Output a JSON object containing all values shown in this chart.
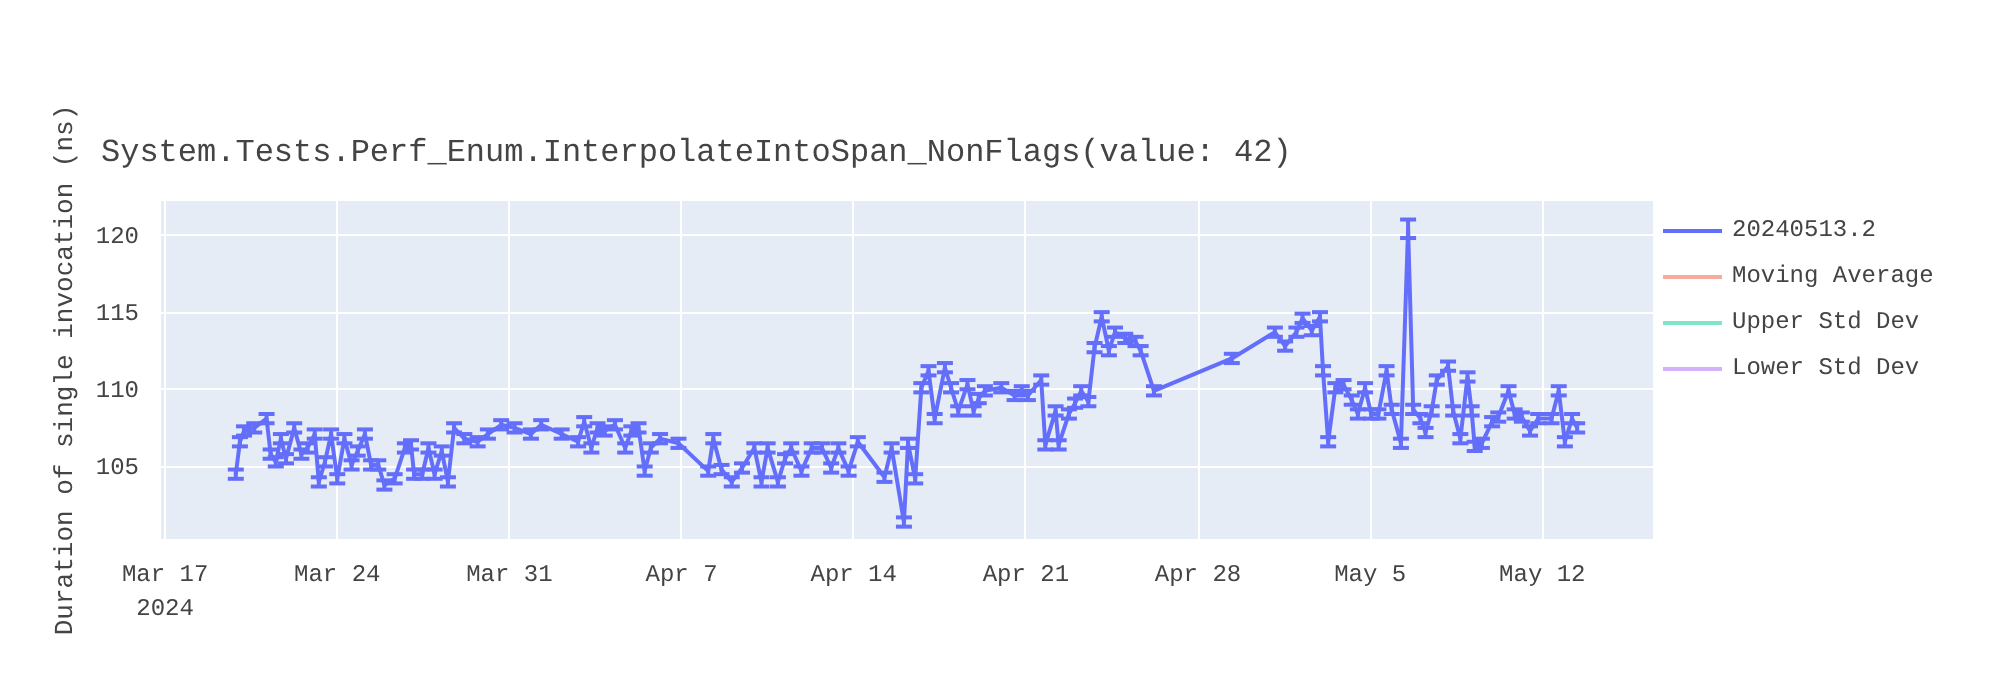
{
  "chart_data": {
    "type": "line",
    "title": "System.Tests.Perf_Enum.InterpolateIntoSpan_NonFlags(value: 42)",
    "ylabel": "Duration of single invocation (ns)",
    "x": [
      "2024-03-19T21:00",
      "2024-03-20T01:00",
      "2024-03-20T05:00",
      "2024-03-20T15:00",
      "2024-03-21T03:00",
      "2024-03-21T07:00",
      "2024-03-21T12:00",
      "2024-03-21T17:00",
      "2024-03-21T22:00",
      "2024-03-22T06:00",
      "2024-03-22T13:00",
      "2024-03-22T19:00",
      "2024-03-23T02:00",
      "2024-03-23T06:00",
      "2024-03-23T12:00",
      "2024-03-23T18:00",
      "2024-03-24T00:00",
      "2024-03-24T07:00",
      "2024-03-24T14:00",
      "2024-03-24T20:00",
      "2024-03-25T03:00",
      "2024-03-25T09:00",
      "2024-03-25T16:00",
      "2024-03-25T22:00",
      "2024-03-26T08:00",
      "2024-03-26T18:00",
      "2024-03-27T00:00",
      "2024-03-27T03:00",
      "2024-03-27T11:00",
      "2024-03-27T17:00",
      "2024-03-27T23:00",
      "2024-03-28T06:00",
      "2024-03-28T12:00",
      "2024-03-28T18:00",
      "2024-03-29T04:00",
      "2024-03-29T17:00",
      "2024-03-30T03:00",
      "2024-03-30T16:00",
      "2024-03-31T05:00",
      "2024-03-31T21:00",
      "2024-04-01T07:00",
      "2024-04-02T03:00",
      "2024-04-02T19:00",
      "2024-04-03T01:00",
      "2024-04-03T08:00",
      "2024-04-03T14:00",
      "2024-04-03T21:00",
      "2024-04-04T07:00",
      "2024-04-04T17:00",
      "2024-04-04T23:00",
      "2024-04-05T06:00",
      "2024-04-05T12:00",
      "2024-04-05T18:00",
      "2024-04-06T03:00",
      "2024-04-06T21:00",
      "2024-04-08T02:00",
      "2024-04-08T07:00",
      "2024-04-08T15:00",
      "2024-04-09T01:00",
      "2024-04-09T11:00",
      "2024-04-09T23:00",
      "2024-04-10T06:00",
      "2024-04-10T12:00",
      "2024-04-10T22:00",
      "2024-04-11T05:00",
      "2024-04-11T11:00",
      "2024-04-11T21:00",
      "2024-04-12T07:00",
      "2024-04-12T17:00",
      "2024-04-13T02:00",
      "2024-04-13T09:00",
      "2024-04-13T19:00",
      "2024-04-14T04:00",
      "2024-04-15T06:00",
      "2024-04-15T13:00",
      "2024-04-16T01:00",
      "2024-04-16T05:00",
      "2024-04-16T12:00",
      "2024-04-16T18:00",
      "2024-04-17T01:00",
      "2024-04-17T07:00",
      "2024-04-17T17:00",
      "2024-04-17T23:00",
      "2024-04-18T06:00",
      "2024-04-18T15:00",
      "2024-04-18T21:00",
      "2024-04-19T02:00",
      "2024-04-19T08:00",
      "2024-04-20T00:00",
      "2024-04-20T13:00",
      "2024-04-20T20:00",
      "2024-04-21T02:00",
      "2024-04-21T15:00",
      "2024-04-21T19:00",
      "2024-04-22T05:00",
      "2024-04-22T08:00",
      "2024-04-22T18:00",
      "2024-04-23T00:00",
      "2024-04-23T06:00",
      "2024-04-23T13:00",
      "2024-04-23T19:00",
      "2024-04-24T02:00",
      "2024-04-24T09:00",
      "2024-04-24T15:00",
      "2024-04-25T01:00",
      "2024-04-25T11:00",
      "2024-04-25T16:00",
      "2024-04-26T05:00",
      "2024-04-29T09:00",
      "2024-05-01T03:00",
      "2024-05-01T13:00",
      "2024-05-02T00:00",
      "2024-05-02T06:00",
      "2024-05-02T15:00",
      "2024-05-02T23:00",
      "2024-05-03T02:00",
      "2024-05-03T07:00",
      "2024-05-03T14:00",
      "2024-05-03T22:00",
      "2024-05-04T06:00",
      "2024-05-04T12:00",
      "2024-05-04T19:00",
      "2024-05-05T01:00",
      "2024-05-05T08:00",
      "2024-05-05T16:00",
      "2024-05-05T21:00",
      "2024-05-06T06:00",
      "2024-05-06T13:00",
      "2024-05-06T18:00",
      "2024-05-07T01:00",
      "2024-05-07T06:00",
      "2024-05-07T12:00",
      "2024-05-07T17:00",
      "2024-05-08T04:00",
      "2024-05-08T09:00",
      "2024-05-08T16:00",
      "2024-05-08T23:00",
      "2024-05-09T03:00",
      "2024-05-09T06:00",
      "2024-05-09T13:00",
      "2024-05-09T23:00",
      "2024-05-10T05:00",
      "2024-05-10T15:00",
      "2024-05-10T21:00",
      "2024-05-11T04:00",
      "2024-05-11T12:00",
      "2024-05-11T20:00",
      "2024-05-12T09:00",
      "2024-05-12T16:00",
      "2024-05-12T22:00",
      "2024-05-13T05:00",
      "2024-05-13T10:00"
    ],
    "series": [
      {
        "name": "20240513.2",
        "color": "#636efa",
        "values": [
          104.5,
          106.6,
          107.3,
          107.5,
          108.1,
          105.8,
          105.3,
          106.8,
          105.5,
          107.5,
          105.8,
          106.2,
          107.1,
          104.0,
          105.3,
          107.1,
          104.2,
          106.8,
          105.1,
          106.0,
          107.1,
          105.1,
          105.1,
          103.8,
          104.2,
          106.2,
          106.4,
          104.5,
          104.5,
          106.2,
          104.5,
          106.0,
          104.0,
          107.5,
          106.8,
          106.6,
          107.1,
          107.7,
          107.5,
          107.1,
          107.7,
          107.1,
          106.6,
          107.9,
          106.2,
          107.5,
          107.3,
          107.7,
          106.2,
          107.3,
          107.5,
          104.7,
          106.2,
          106.8,
          106.5,
          104.7,
          106.8,
          104.8,
          104.0,
          104.9,
          106.2,
          104.0,
          106.2,
          104.0,
          105.5,
          106.2,
          104.7,
          106.2,
          106.2,
          104.9,
          106.2,
          104.7,
          106.6,
          104.3,
          106.2,
          101.4,
          106.5,
          104.2,
          110.1,
          111.2,
          108.1,
          111.4,
          110.1,
          108.6,
          110.3,
          108.6,
          109.4,
          109.9,
          110.1,
          109.6,
          109.9,
          109.6,
          110.6,
          106.4,
          108.6,
          106.4,
          108.4,
          109.1,
          109.9,
          109.2,
          112.7,
          114.7,
          112.5,
          113.7,
          113.3,
          113.1,
          112.5,
          109.9,
          112.0,
          113.7,
          112.8,
          113.7,
          114.6,
          113.8,
          114.7,
          111.2,
          106.6,
          110.1,
          110.3,
          109.3,
          108.4,
          110.1,
          108.4,
          108.4,
          111.2,
          108.7,
          106.5,
          120.4,
          108.7,
          108.1,
          107.2,
          108.6,
          110.6,
          111.5,
          108.6,
          106.8,
          110.8,
          108.6,
          106.3,
          106.5,
          107.9,
          108.2,
          109.9,
          108.4,
          108.2,
          107.3,
          108.1,
          108.1,
          109.9,
          106.6,
          108.1,
          107.5
        ],
        "errors": [
          0.3,
          0.3,
          0.3,
          0.3,
          0.3,
          0.3,
          0.3,
          0.3,
          0.3,
          0.3,
          0.3,
          0.3,
          0.3,
          0.3,
          0.3,
          0.3,
          0.3,
          0.3,
          0.3,
          0.3,
          0.3,
          0.3,
          0.3,
          0.3,
          0.3,
          0.3,
          0.3,
          0.3,
          0.3,
          0.3,
          0.3,
          0.3,
          0.3,
          0.3,
          0.3,
          0.3,
          0.3,
          0.3,
          0.3,
          0.3,
          0.3,
          0.3,
          0.3,
          0.3,
          0.3,
          0.3,
          0.3,
          0.3,
          0.3,
          0.3,
          0.3,
          0.3,
          0.3,
          0.3,
          0.3,
          0.3,
          0.3,
          0.3,
          0.3,
          0.3,
          0.3,
          0.3,
          0.3,
          0.3,
          0.3,
          0.3,
          0.3,
          0.3,
          0.3,
          0.3,
          0.3,
          0.3,
          0.3,
          0.3,
          0.3,
          0.3,
          0.3,
          0.3,
          0.3,
          0.3,
          0.3,
          0.3,
          0.3,
          0.3,
          0.3,
          0.3,
          0.3,
          0.3,
          0.3,
          0.3,
          0.3,
          0.3,
          0.3,
          0.3,
          0.3,
          0.3,
          0.3,
          0.3,
          0.3,
          0.3,
          0.3,
          0.3,
          0.3,
          0.3,
          0.3,
          0.3,
          0.3,
          0.3,
          0.3,
          0.3,
          0.3,
          0.3,
          0.3,
          0.3,
          0.3,
          0.3,
          0.3,
          0.3,
          0.3,
          0.3,
          0.3,
          0.3,
          0.3,
          0.3,
          0.3,
          0.3,
          0.3,
          0.6,
          0.3,
          0.3,
          0.3,
          0.3,
          0.3,
          0.3,
          0.3,
          0.3,
          0.3,
          0.3,
          0.3,
          0.3,
          0.3,
          0.3,
          0.3,
          0.3,
          0.3,
          0.3,
          0.3,
          0.3,
          0.3,
          0.3,
          0.3,
          0.3
        ]
      },
      {
        "name": "Moving Average",
        "color": "#ef553b",
        "values": [
          null,
          null,
          null,
          null,
          null,
          null,
          null,
          null,
          null,
          null,
          null,
          null,
          null,
          null,
          null,
          null,
          null,
          null,
          null,
          null,
          null,
          null,
          null,
          null,
          null,
          null,
          null,
          null,
          null,
          null,
          null,
          null,
          null,
          null,
          null,
          null,
          null,
          null,
          null,
          null,
          null,
          null,
          null,
          null,
          null,
          null,
          null,
          null,
          null,
          null,
          null,
          null,
          null,
          null,
          null,
          null,
          null,
          null,
          null,
          null,
          null,
          null,
          null,
          null,
          null,
          null,
          null,
          null,
          null,
          null,
          null,
          null,
          null,
          null,
          null,
          null,
          null,
          null,
          null,
          null,
          null,
          null,
          null,
          null,
          null,
          null,
          null,
          null,
          null,
          null,
          null,
          null,
          null,
          null,
          null,
          null,
          null,
          null,
          null,
          null,
          null,
          null,
          null,
          null,
          null,
          null,
          null,
          null,
          null,
          null,
          null,
          null,
          null,
          null,
          null,
          null,
          null,
          null,
          null,
          null,
          null,
          null,
          null,
          null,
          null,
          null,
          null,
          null,
          null,
          null,
          null,
          null,
          null,
          null,
          null,
          null,
          null,
          null,
          null,
          null,
          null,
          null,
          null,
          null,
          null,
          null,
          null,
          null,
          null,
          null,
          null,
          null
        ]
      },
      {
        "name": "Upper Std Dev",
        "color": "#00cc96",
        "values": [
          null,
          null,
          null,
          null,
          null,
          null,
          null,
          null,
          null,
          null,
          null,
          null,
          null,
          null,
          null,
          null,
          null,
          null,
          null,
          null,
          null,
          null,
          null,
          null,
          null,
          null,
          null,
          null,
          null,
          null,
          null,
          null,
          null,
          null,
          null,
          null,
          null,
          null,
          null,
          null,
          null,
          null,
          null,
          null,
          null,
          null,
          null,
          null,
          null,
          null,
          null,
          null,
          null,
          null,
          null,
          null,
          null,
          null,
          null,
          null,
          null,
          null,
          null,
          null,
          null,
          null,
          null,
          null,
          null,
          null,
          null,
          null,
          null,
          null,
          null,
          null,
          null,
          null,
          null,
          null,
          null,
          null,
          null,
          null,
          null,
          null,
          null,
          null,
          null,
          null,
          null,
          null,
          null,
          null,
          null,
          null,
          null,
          null,
          null,
          null,
          null,
          null,
          null,
          null,
          null,
          null,
          null,
          null,
          null,
          null,
          null,
          null,
          null,
          null,
          null,
          null,
          null,
          null,
          null,
          null,
          null,
          null,
          null,
          null,
          null,
          null,
          null,
          null,
          null,
          null,
          null,
          null,
          null,
          null,
          null,
          null,
          null,
          null,
          null,
          null,
          null,
          null,
          null,
          null,
          null,
          null,
          null,
          null,
          null,
          null,
          null,
          null
        ]
      },
      {
        "name": "Lower Std Dev",
        "color": "#ab63fa",
        "values": [
          null,
          null,
          null,
          null,
          null,
          null,
          null,
          null,
          null,
          null,
          null,
          null,
          null,
          null,
          null,
          null,
          null,
          null,
          null,
          null,
          null,
          null,
          null,
          null,
          null,
          null,
          null,
          null,
          null,
          null,
          null,
          null,
          null,
          null,
          null,
          null,
          null,
          null,
          null,
          null,
          null,
          null,
          null,
          null,
          null,
          null,
          null,
          null,
          null,
          null,
          null,
          null,
          null,
          null,
          null,
          null,
          null,
          null,
          null,
          null,
          null,
          null,
          null,
          null,
          null,
          null,
          null,
          null,
          null,
          null,
          null,
          null,
          null,
          null,
          null,
          null,
          null,
          null,
          null,
          null,
          null,
          null,
          null,
          null,
          null,
          null,
          null,
          null,
          null,
          null,
          null,
          null,
          null,
          null,
          null,
          null,
          null,
          null,
          null,
          null,
          null,
          null,
          null,
          null,
          null,
          null,
          null,
          null,
          null,
          null,
          null,
          null,
          null,
          null,
          null,
          null,
          null,
          null,
          null,
          null,
          null,
          null,
          null,
          null,
          null,
          null,
          null,
          null,
          null,
          null,
          null,
          null,
          null,
          null,
          null,
          null,
          null,
          null,
          null,
          null,
          null,
          null,
          null,
          null,
          null,
          null,
          null,
          null,
          null,
          null,
          null,
          null
        ]
      }
    ],
    "xlim": [
      "2024-03-16T20:00",
      "2024-05-16T12:00"
    ],
    "xticks": [
      {
        "value": "2024-03-17",
        "label": "Mar 17\n2024"
      },
      {
        "value": "2024-03-24",
        "label": "Mar 24"
      },
      {
        "value": "2024-03-31",
        "label": "Mar 31"
      },
      {
        "value": "2024-04-07",
        "label": "Apr 7"
      },
      {
        "value": "2024-04-14",
        "label": "Apr 14"
      },
      {
        "value": "2024-04-21",
        "label": "Apr 21"
      },
      {
        "value": "2024-04-28",
        "label": "Apr 28"
      },
      {
        "value": "2024-05-05",
        "label": "May 5"
      },
      {
        "value": "2024-05-12",
        "label": "May 12"
      }
    ],
    "ylim": [
      100.3,
      122.2
    ],
    "yticks": [
      105,
      110,
      115,
      120
    ],
    "grid": true,
    "legend": "right",
    "marker": "none",
    "line_style": "solid"
  }
}
